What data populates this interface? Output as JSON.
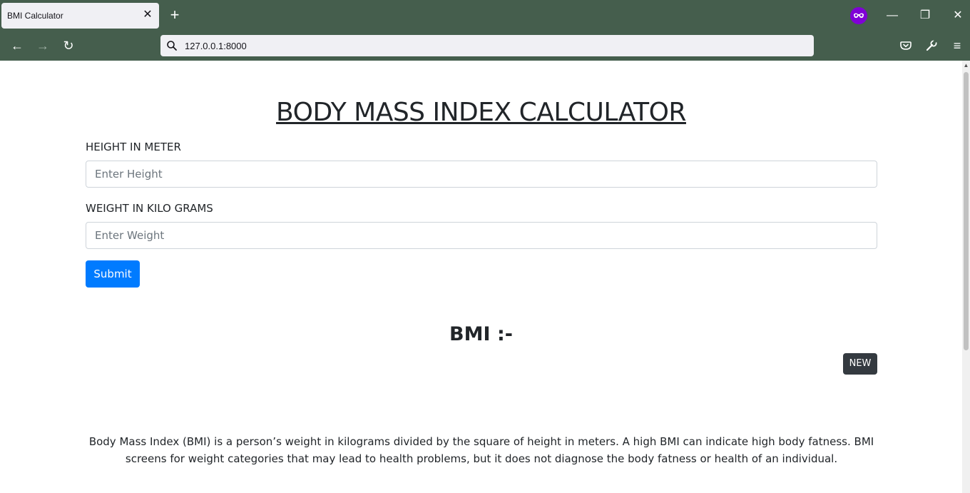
{
  "browser": {
    "tab_title": "BMI Calculator",
    "tab_close": "✕",
    "new_tab": "+",
    "url": "127.0.0.1:8000",
    "window_minimize": "—",
    "window_restore": "❐",
    "window_close": "✕",
    "back": "←",
    "forward": "→",
    "reload": "↻",
    "menu": "≡"
  },
  "page": {
    "title": "BODY MASS INDEX CALCULATOR",
    "height_label": "HEIGHT IN METER",
    "height_placeholder": "Enter Height",
    "weight_label": "WEIGHT IN KILO GRAMS",
    "weight_placeholder": "Enter Weight",
    "submit_label": "Submit",
    "bmi_heading": "BMI :-",
    "badge": "NEW",
    "description": "Body Mass Index (BMI) is a person’s weight in kilograms divided by the square of height in meters. A high BMI can indicate high body fatness. BMI screens for weight categories that may lead to health problems, but it does not diagnose the body fatness or health of an individual."
  },
  "colors": {
    "chrome": "#455e4d",
    "primary": "#007bff",
    "badge": "#343a40"
  }
}
